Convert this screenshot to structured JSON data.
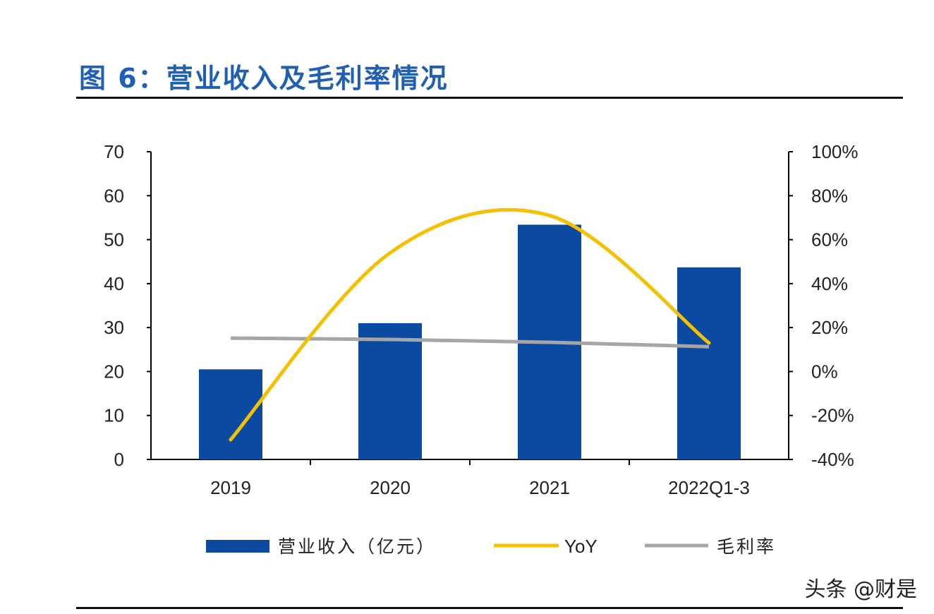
{
  "title": "图 6：营业收入及毛利率情况",
  "watermark": "头条 @财是",
  "chart_data": {
    "type": "bar",
    "title": "图 6：营业收入及毛利率情况",
    "categories": [
      "2019",
      "2020",
      "2021",
      "2022Q1-3"
    ],
    "y_left": {
      "ylim": [
        0,
        70
      ],
      "ticks": [
        "0",
        "10",
        "20",
        "30",
        "40",
        "50",
        "60",
        "70"
      ]
    },
    "y_right": {
      "ylim": [
        -40,
        100
      ],
      "ticks": [
        "-40%",
        "-20%",
        "0%",
        "20%",
        "40%",
        "60%",
        "80%",
        "100%"
      ]
    },
    "series": [
      {
        "name": "营业收入（亿元）",
        "type": "bar",
        "axis": "left",
        "color": "#0b4aa2",
        "values": [
          20.5,
          31.0,
          53.4,
          43.7
        ]
      },
      {
        "name": "YoY",
        "type": "line",
        "axis": "right",
        "color": "#f5c000",
        "smooth": true,
        "values": [
          -31,
          54,
          71,
          13
        ]
      },
      {
        "name": "毛利率",
        "type": "line",
        "axis": "right",
        "color": "#a6a6a6",
        "values": [
          15.2,
          14.6,
          13.3,
          11.3
        ]
      }
    ],
    "legend": "bottom"
  }
}
